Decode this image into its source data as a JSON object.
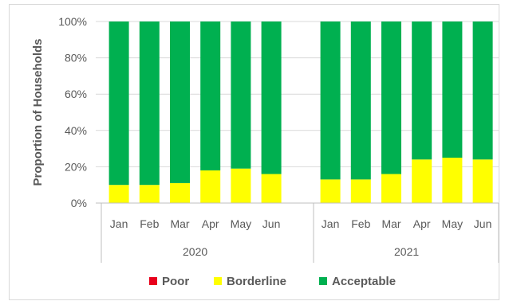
{
  "chart_data": {
    "type": "bar",
    "stacked": "percent",
    "ylabel": "Proportion of Households",
    "ylim": [
      0,
      100
    ],
    "yticks": [
      "0%",
      "20%",
      "40%",
      "60%",
      "80%",
      "100%"
    ],
    "groups": [
      {
        "label": "2020",
        "categories": [
          "Jan",
          "Feb",
          "Mar",
          "Apr",
          "May",
          "Jun"
        ]
      },
      {
        "label": "2021",
        "categories": [
          "Jan",
          "Feb",
          "Mar",
          "Apr",
          "May",
          "Jun"
        ]
      }
    ],
    "series": [
      {
        "name": "Poor",
        "color": "#e8001c",
        "values": [
          0,
          0,
          0,
          0,
          0,
          0,
          0,
          0,
          0,
          0,
          0,
          0
        ]
      },
      {
        "name": "Borderline",
        "color": "#ffff00",
        "values": [
          10,
          10,
          11,
          18,
          19,
          16,
          13,
          13,
          16,
          24,
          25,
          24
        ]
      },
      {
        "name": "Acceptable",
        "color": "#00b050",
        "values": [
          90,
          90,
          89,
          82,
          81,
          84,
          87,
          87,
          84,
          76,
          75,
          76
        ]
      }
    ],
    "legend_position": "bottom",
    "grid": true
  }
}
